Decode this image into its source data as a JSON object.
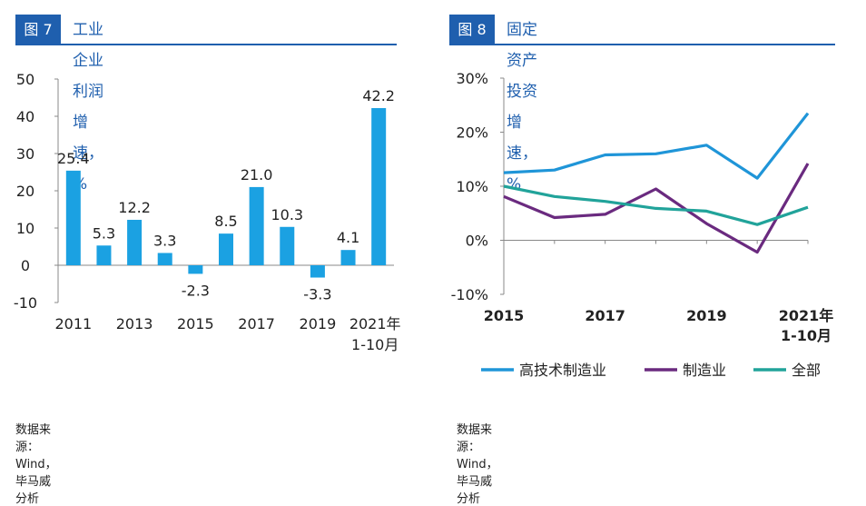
{
  "left_panel": {
    "badge": "图 7",
    "title": "工业企业利润增速，%",
    "source": "数据来源：Wind，毕马威分析"
  },
  "right_panel": {
    "badge": "图 8",
    "title": "固定资产投资增速，%",
    "source": "数据来源：Wind，毕马威分析"
  },
  "colors": {
    "brand": "#1f5fae",
    "bar": "#1ba1e2",
    "hightech": "#1f95d8",
    "manufacturing": "#6a2a7f",
    "total": "#21a39a"
  },
  "chart_data": [
    {
      "type": "bar",
      "categories": [
        "2011",
        "2012",
        "2013",
        "2014",
        "2015",
        "2016",
        "2017",
        "2018",
        "2019",
        "2020",
        "2021年1-10月"
      ],
      "values": [
        25.4,
        5.3,
        12.2,
        3.3,
        -2.3,
        8.5,
        21.0,
        10.3,
        -3.3,
        4.1,
        42.2
      ],
      "value_labels": [
        "25.4",
        "5.3",
        "12.2",
        "3.3",
        "-2.3",
        "8.5",
        "21.0",
        "10.3",
        "-3.3",
        "4.1",
        "42.2"
      ],
      "x_tick_labels": [
        "2011",
        "2013",
        "2015",
        "2017",
        "2019",
        "2021年",
        "1-10月"
      ],
      "y_tick_labels": [
        "50",
        "40",
        "30",
        "20",
        "10",
        "0",
        "-10"
      ],
      "ylim": [
        -10,
        50
      ],
      "grid": false
    },
    {
      "type": "line",
      "x": [
        "2015",
        "2016",
        "2017",
        "2018",
        "2019",
        "2020",
        "2021年1-10月"
      ],
      "series": [
        {
          "name": "高技术制造业",
          "color": "#1f95d8",
          "values": [
            12.5,
            13.0,
            15.8,
            16.0,
            17.6,
            11.5,
            23.5
          ]
        },
        {
          "name": "制造业",
          "color": "#6a2a7f",
          "values": [
            8.1,
            4.2,
            4.8,
            9.5,
            3.1,
            -2.2,
            14.2
          ]
        },
        {
          "name": "全部",
          "color": "#21a39a",
          "values": [
            10.0,
            8.1,
            7.2,
            5.9,
            5.4,
            2.9,
            6.1
          ]
        }
      ],
      "x_tick_labels": [
        "2015",
        "2017",
        "2019",
        "2021年",
        "1-10月"
      ],
      "y_tick_labels": [
        "30%",
        "20%",
        "10%",
        "0%",
        "-10%"
      ],
      "ylim": [
        -10,
        30
      ],
      "legend_position": "bottom",
      "grid": false
    }
  ]
}
